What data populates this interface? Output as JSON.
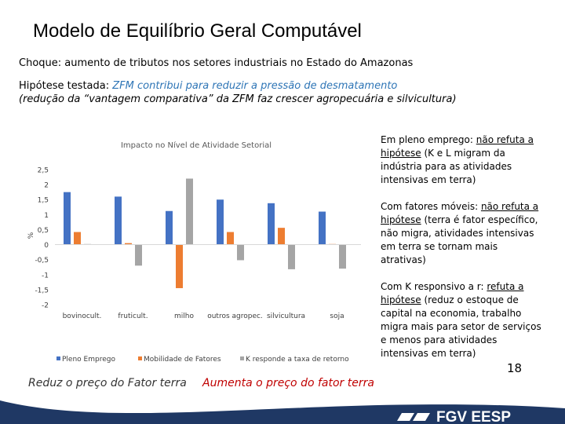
{
  "slide": {
    "title": "Modelo de Equilíbrio Geral Computável",
    "subtitle": "Choque: aumento de tributos nos setores industriais no Estado do Amazonas",
    "hypothesis_label": "Hipótese testada: ",
    "hypothesis_text": "ZFM contribui para reduzir a pressão de desmatamento",
    "hypothesis_line2": "(redução da “vantagem comparativa” da ZFM faz crescer agropecuária e silvicultura)",
    "page_number": "18",
    "caption_left": "Reduz o preço do Fator terra",
    "caption_right": "Aumenta o preço do fator terra"
  },
  "notes": [
    {
      "prefix": "Em pleno emprego: ",
      "underline": "não refuta a hipótese",
      "rest": " (K e L migram da indústria para as atividades intensivas em terra)"
    },
    {
      "prefix": "Com fatores móveis: ",
      "underline": "não refuta a hipótese",
      "rest": " (terra é fator específico, não migra, atividades intensivas em terra se tornam mais atrativas)"
    },
    {
      "prefix": "Com K responsivo a r: ",
      "underline": "refuta a hipótese",
      "rest": " (reduz o estoque de capital na economia, trabalho migra mais para setor de serviços e menos para atividades intensivas em terra)"
    }
  ],
  "footer": {
    "logo_text": "FGV EESP",
    "bg_color": "#1f3864"
  },
  "chart_data": {
    "type": "bar",
    "title": "Impacto no Nível de Atividade Setorial",
    "ylabel": "%",
    "xlabel": "",
    "categories": [
      "bovinocult.",
      "fruticult.",
      "milho",
      "outros agropec.",
      "silvicultura",
      "soja"
    ],
    "series": [
      {
        "name": "Pleno Emprego",
        "color": "#4472c4",
        "values": [
          1.75,
          1.6,
          1.12,
          1.5,
          1.38,
          1.1
        ]
      },
      {
        "name": "Mobilidade de Fatores",
        "color": "#ed7d31",
        "values": [
          0.42,
          0.05,
          -1.45,
          0.42,
          0.56,
          0.02
        ]
      },
      {
        "name": "K responde a taxa de retorno",
        "color": "#a5a5a5",
        "values": [
          0.02,
          -0.7,
          2.2,
          -0.52,
          -0.82,
          -0.8
        ]
      }
    ],
    "ylim": [
      -2,
      2.5
    ],
    "yticks": [
      "2,5",
      "2",
      "1,5",
      "1",
      "0,5",
      "0",
      "-0,5",
      "-1",
      "-1,5",
      "-2"
    ],
    "ytick_values": [
      2.5,
      2,
      1.5,
      1,
      0.5,
      0,
      -0.5,
      -1,
      -1.5,
      -2
    ],
    "legend_position": "bottom",
    "grid": false
  }
}
